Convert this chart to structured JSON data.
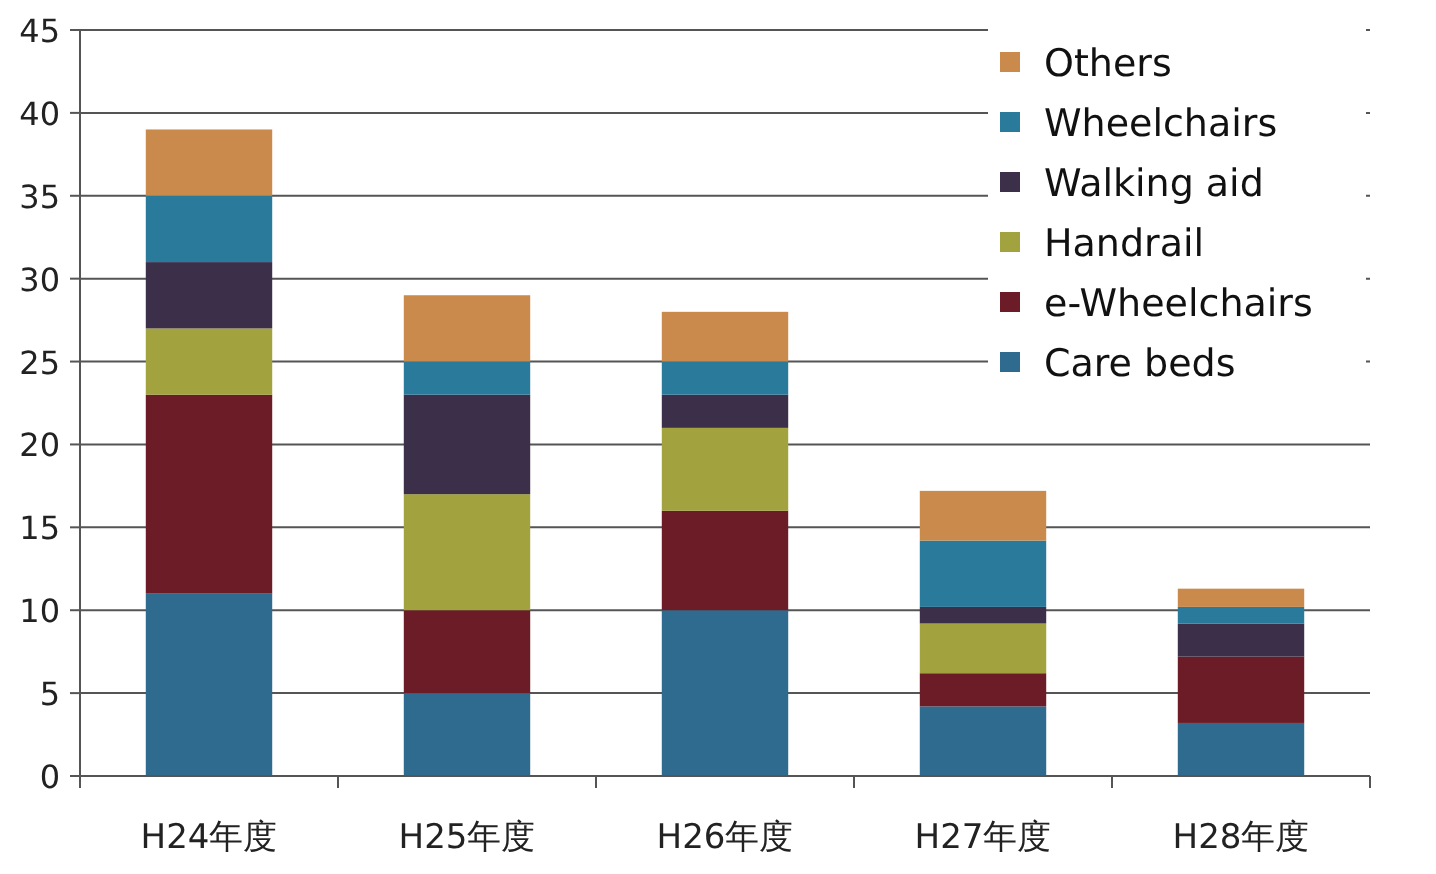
{
  "chart_data": {
    "type": "bar",
    "stacked": true,
    "categories": [
      "H24年度",
      "H25年度",
      "H26年度",
      "H27年度",
      "H28年度"
    ],
    "series": [
      {
        "name": "Care beds",
        "color": "#2f6b8f",
        "values": [
          11,
          5,
          10,
          4.2,
          3.2
        ]
      },
      {
        "name": "e-Wheelchairs",
        "color": "#6b1c26",
        "values": [
          12,
          5,
          6,
          2,
          4
        ]
      },
      {
        "name": "Handrail",
        "color": "#a2a23e",
        "values": [
          4,
          7,
          5,
          3,
          0
        ]
      },
      {
        "name": "Walking aid",
        "color": "#3b2f4a",
        "values": [
          4,
          6,
          2,
          1,
          2
        ]
      },
      {
        "name": "Wheelchairs",
        "color": "#2a7b9b",
        "values": [
          4,
          2,
          2,
          4,
          1
        ]
      },
      {
        "name": "Others",
        "color": "#c98a4c",
        "values": [
          4,
          4,
          3,
          3,
          1.1
        ]
      }
    ],
    "ylim": [
      0,
      45
    ],
    "yticks": [
      0,
      5,
      10,
      15,
      20,
      25,
      30,
      35,
      40,
      45
    ],
    "grid": "y",
    "legend": "top right"
  }
}
